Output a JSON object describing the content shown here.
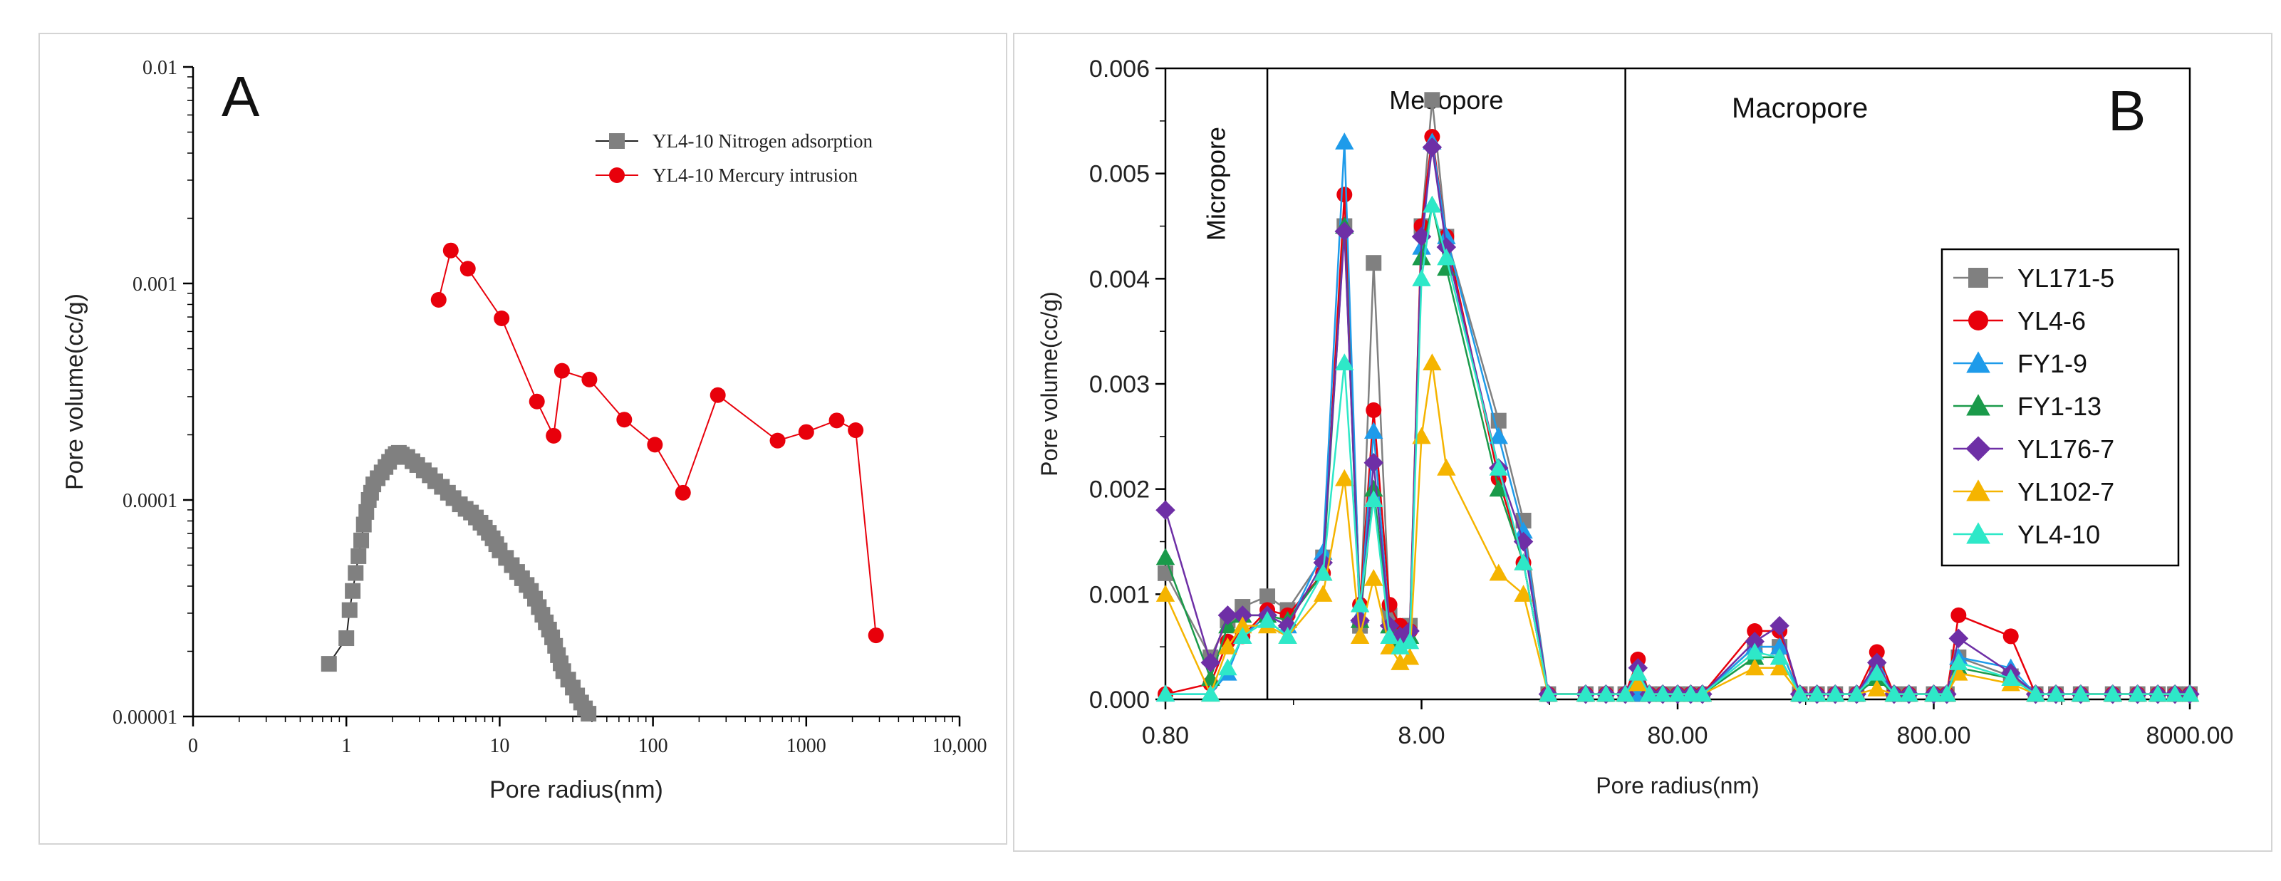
{
  "chart_data": [
    {
      "type": "line",
      "panel_label": "A",
      "xscale": "log",
      "yscale": "log",
      "xlabel": "Pore radius(nm)",
      "ylabel": "Pore volume(cc/g)",
      "xlim": [
        0.1,
        10000
      ],
      "ylim": [
        1e-05,
        0.01
      ],
      "xticks": [
        {
          "value": 0.1,
          "label": "0"
        },
        {
          "value": 1,
          "label": "1"
        },
        {
          "value": 10,
          "label": "10"
        },
        {
          "value": 100,
          "label": "100"
        },
        {
          "value": 1000,
          "label": "1000"
        },
        {
          "value": 10000,
          "label": "10,000"
        }
      ],
      "yticks": [
        {
          "value": 1e-05,
          "label": "0.00001"
        },
        {
          "value": 0.0001,
          "label": "0.0001"
        },
        {
          "value": 0.001,
          "label": "0.001"
        },
        {
          "value": 0.01,
          "label": "0.01"
        }
      ],
      "legend_position": "top-right",
      "series": [
        {
          "name": "YL4-10 Nitrogen adsorption",
          "color": "#808080",
          "marker": "square",
          "x": [
            0.77,
            1.0,
            1.05,
            1.1,
            1.15,
            1.2,
            1.25,
            1.3,
            1.35,
            1.4,
            1.45,
            1.5,
            1.6,
            1.7,
            1.8,
            1.9,
            2.0,
            2.1,
            2.2,
            2.3,
            2.5,
            2.7,
            2.9,
            3.2,
            3.5,
            3.8,
            4.2,
            4.6,
            5.0,
            5.5,
            6.0,
            6.5,
            7.0,
            7.5,
            8.0,
            8.5,
            9.0,
            9.5,
            10,
            11,
            12,
            13,
            14,
            15,
            16,
            17,
            18,
            19,
            20,
            21,
            22,
            23,
            24,
            25,
            26,
            28,
            30,
            32,
            34,
            36,
            38
          ],
          "y": [
            1.75e-05,
            2.3e-05,
            3.1e-05,
            3.8e-05,
            4.6e-05,
            5.5e-05,
            6.5e-05,
            7.7e-05,
            8.8e-05,
            0.0001,
            0.000108,
            0.000118,
            0.000126,
            0.000134,
            0.000142,
            0.00015,
            0.000158,
            0.000163,
            0.000165,
            0.000162,
            0.000158,
            0.000151,
            0.000145,
            0.000137,
            0.00013,
            0.000122,
            0.000115,
            0.000108,
            0.000102,
            9.55e-05,
            9.1e-05,
            8.75e-05,
            8.3e-05,
            7.85e-05,
            7.45e-05,
            7.05e-05,
            6.65e-05,
            6.25e-05,
            5.85e-05,
            5.4e-05,
            5e-05,
            4.65e-05,
            4.35e-05,
            4.05e-05,
            3.8e-05,
            3.5e-05,
            3.2e-05,
            2.95e-05,
            2.72e-05,
            2.52e-05,
            2.32e-05,
            2.12e-05,
            1.92e-05,
            1.76e-05,
            1.62e-05,
            1.48e-05,
            1.36e-05,
            1.25e-05,
            1.16e-05,
            1.09e-05,
            1.03e-05
          ]
        },
        {
          "name": "YL4-10 Mercury intrusion",
          "color": "#e8000b",
          "marker": "circle",
          "x": [
            4.0,
            4.8,
            6.2,
            10.3,
            17.5,
            22.5,
            25.5,
            38.5,
            65,
            103,
            157,
            265,
            650,
            1000,
            1580,
            2100,
            2850
          ],
          "y": [
            0.00084,
            0.00142,
            0.00117,
            0.00069,
            0.000285,
            0.000198,
            0.000395,
            0.00036,
            0.000235,
            0.00018,
            0.000108,
            0.000305,
            0.000188,
            0.000206,
            0.000233,
            0.00021,
            2.37e-05
          ]
        }
      ]
    },
    {
      "type": "line",
      "panel_label": "B",
      "xscale": "log",
      "xlabel": "Pore radius(nm)",
      "ylabel": "Pore volume(cc/g)",
      "xlim": [
        0.8,
        8000
      ],
      "ylim": [
        0,
        0.006
      ],
      "xticks": [
        {
          "value": 0.8,
          "label": "0.80"
        },
        {
          "value": 8,
          "label": "8.00"
        },
        {
          "value": 80,
          "label": "80.00"
        },
        {
          "value": 800,
          "label": "800.00"
        },
        {
          "value": 8000,
          "label": "8000.00"
        }
      ],
      "yticks": [
        {
          "value": 0,
          "label": "0.000"
        },
        {
          "value": 0.001,
          "label": "0.001"
        },
        {
          "value": 0.002,
          "label": "0.002"
        },
        {
          "value": 0.003,
          "label": "0.003"
        },
        {
          "value": 0.004,
          "label": "0.004"
        },
        {
          "value": 0.005,
          "label": "0.005"
        },
        {
          "value": 0.006,
          "label": "0.006"
        }
      ],
      "regions": [
        {
          "label": "Micropore",
          "from": 0.8,
          "to": 2.0,
          "vertical_text": true
        },
        {
          "label": "Mesopore",
          "from": 2.0,
          "to": 50,
          "vertical_text": false
        },
        {
          "label": "Macropore",
          "from": 50,
          "to": 8000,
          "vertical_text": false
        }
      ],
      "legend_position": "right",
      "x": [
        0.8,
        1.2,
        1.4,
        1.6,
        2.0,
        2.4,
        3.3,
        4.0,
        4.6,
        5.2,
        6.0,
        6.6,
        7.2,
        8.0,
        8.8,
        10,
        16,
        20,
        25,
        35,
        42,
        50,
        56,
        62,
        70,
        80,
        90,
        100,
        160,
        200,
        240,
        280,
        330,
        400,
        480,
        560,
        640,
        800,
        900,
        1000,
        1600,
        2000,
        2400,
        3000,
        4000,
        5000,
        6000,
        7000,
        8000
      ],
      "series": [
        {
          "name": "YL171-5",
          "color": "#808080",
          "marker": "square",
          "y": [
            0.0012,
            0.0004,
            0.00075,
            0.00088,
            0.00098,
            0.00085,
            0.00135,
            0.0045,
            0.0007,
            0.00415,
            0.0008,
            0.0006,
            0.0007,
            0.0045,
            0.0057,
            0.0044,
            0.00265,
            0.0017,
            5e-05,
            5e-05,
            5e-05,
            5e-05,
            5e-05,
            5e-05,
            5e-05,
            5e-05,
            5e-05,
            5e-05,
            0.0005,
            0.0005,
            5e-05,
            5e-05,
            5e-05,
            5e-05,
            0.0003,
            5e-05,
            5e-05,
            5e-05,
            5e-05,
            0.0004,
            0.00022,
            5e-05,
            5e-05,
            5e-05,
            5e-05,
            5e-05,
            5e-05,
            5e-05,
            5e-05
          ]
        },
        {
          "name": "YL4-6",
          "color": "#e8000b",
          "marker": "circle",
          "y": [
            5e-05,
            0.00015,
            0.00055,
            0.0006,
            0.00085,
            0.0008,
            0.0012,
            0.0048,
            0.0009,
            0.00275,
            0.0009,
            0.0007,
            0.00065,
            0.0045,
            0.00535,
            0.0044,
            0.0021,
            0.0013,
            5e-05,
            5e-05,
            5e-05,
            5e-05,
            0.00038,
            5e-05,
            5e-05,
            5e-05,
            5e-05,
            5e-05,
            0.00065,
            0.00065,
            5e-05,
            5e-05,
            5e-05,
            5e-05,
            0.00045,
            5e-05,
            5e-05,
            5e-05,
            5e-05,
            0.0008,
            0.0006,
            5e-05,
            5e-05,
            5e-05,
            5e-05,
            5e-05,
            5e-05,
            5e-05,
            5e-05
          ]
        },
        {
          "name": "FY1-9",
          "color": "#1e9bea",
          "marker": "triangle",
          "y": [
            5e-05,
            5e-05,
            0.00025,
            0.0006,
            0.0008,
            0.0007,
            0.0014,
            0.0053,
            0.0008,
            0.00255,
            0.0007,
            0.0006,
            0.0006,
            0.0043,
            0.0053,
            0.0044,
            0.0025,
            0.0016,
            5e-05,
            5e-05,
            5e-05,
            5e-05,
            5e-05,
            5e-05,
            5e-05,
            5e-05,
            5e-05,
            5e-05,
            0.0005,
            0.0005,
            5e-05,
            5e-05,
            5e-05,
            5e-05,
            0.0003,
            5e-05,
            5e-05,
            5e-05,
            5e-05,
            0.0004,
            0.0003,
            5e-05,
            5e-05,
            5e-05,
            5e-05,
            5e-05,
            5e-05,
            5e-05,
            5e-05
          ]
        },
        {
          "name": "FY1-13",
          "color": "#1a9a4a",
          "marker": "triangle",
          "y": [
            0.00135,
            0.0002,
            0.0007,
            0.0008,
            0.0008,
            0.00075,
            0.0012,
            0.0045,
            0.00075,
            0.002,
            0.0007,
            0.00055,
            0.0006,
            0.0042,
            0.0047,
            0.0041,
            0.002,
            0.0013,
            5e-05,
            5e-05,
            5e-05,
            5e-05,
            0.0002,
            5e-05,
            5e-05,
            5e-05,
            5e-05,
            5e-05,
            0.0004,
            0.0004,
            5e-05,
            5e-05,
            5e-05,
            5e-05,
            0.0002,
            5e-05,
            5e-05,
            5e-05,
            5e-05,
            0.0003,
            0.0002,
            5e-05,
            5e-05,
            5e-05,
            5e-05,
            5e-05,
            5e-05,
            5e-05,
            5e-05
          ]
        },
        {
          "name": "YL176-7",
          "color": "#6e2fa6",
          "marker": "diamond",
          "y": [
            0.0018,
            0.00035,
            0.0008,
            0.0008,
            0.0008,
            0.0007,
            0.0013,
            0.00445,
            0.00075,
            0.00225,
            0.0007,
            0.0006,
            0.00065,
            0.0044,
            0.00525,
            0.0043,
            0.0022,
            0.0015,
            5e-05,
            5e-05,
            5e-05,
            5e-05,
            0.0003,
            5e-05,
            5e-05,
            5e-05,
            5e-05,
            5e-05,
            0.00055,
            0.0007,
            5e-05,
            5e-05,
            5e-05,
            5e-05,
            0.00035,
            5e-05,
            5e-05,
            5e-05,
            5e-05,
            0.00058,
            0.00025,
            5e-05,
            5e-05,
            5e-05,
            5e-05,
            5e-05,
            5e-05,
            5e-05,
            5e-05
          ]
        },
        {
          "name": "YL102-7",
          "color": "#f5b400",
          "marker": "triangle",
          "y": [
            0.001,
            5e-05,
            0.0005,
            0.0007,
            0.0007,
            0.0006,
            0.001,
            0.0021,
            0.0006,
            0.00115,
            0.0005,
            0.00035,
            0.0004,
            0.0025,
            0.0032,
            0.0022,
            0.0012,
            0.001,
            5e-05,
            5e-05,
            5e-05,
            5e-05,
            0.00015,
            5e-05,
            5e-05,
            5e-05,
            5e-05,
            5e-05,
            0.0003,
            0.0003,
            5e-05,
            5e-05,
            5e-05,
            5e-05,
            0.0001,
            5e-05,
            5e-05,
            5e-05,
            5e-05,
            0.00025,
            0.00015,
            5e-05,
            5e-05,
            5e-05,
            5e-05,
            5e-05,
            5e-05,
            5e-05,
            5e-05
          ]
        },
        {
          "name": "YL4-10",
          "color": "#2ee8c8",
          "marker": "triangle",
          "y": [
            5e-05,
            5e-05,
            0.0003,
            0.0006,
            0.00075,
            0.0006,
            0.0012,
            0.0032,
            0.0009,
            0.0019,
            0.0006,
            0.0005,
            0.00055,
            0.004,
            0.0047,
            0.0042,
            0.0022,
            0.0013,
            5e-05,
            5e-05,
            5e-05,
            5e-05,
            0.00025,
            5e-05,
            5e-05,
            5e-05,
            5e-05,
            5e-05,
            0.00045,
            0.0004,
            5e-05,
            5e-05,
            5e-05,
            5e-05,
            0.00025,
            5e-05,
            5e-05,
            5e-05,
            5e-05,
            0.00035,
            0.0002,
            5e-05,
            5e-05,
            5e-05,
            5e-05,
            5e-05,
            5e-05,
            5e-05,
            5e-05
          ]
        }
      ]
    }
  ]
}
